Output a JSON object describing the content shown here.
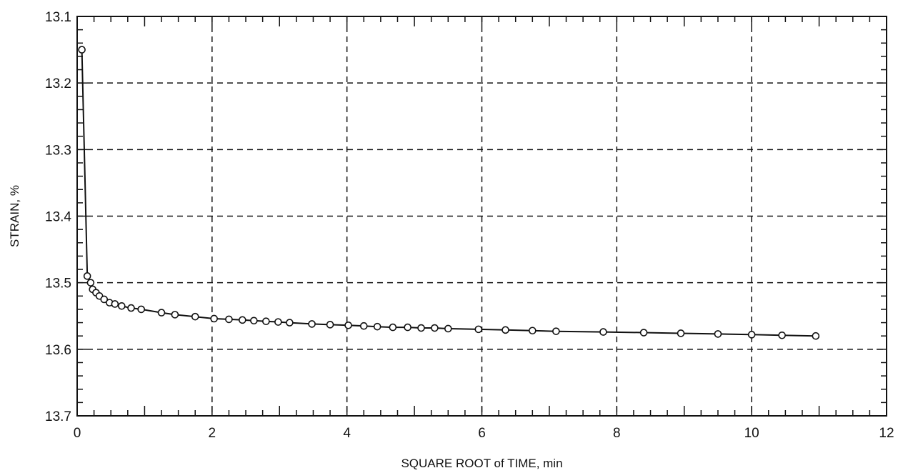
{
  "chart_data": {
    "type": "scatter",
    "xlabel": "SQUARE ROOT of TIME, min",
    "ylabel": "STRAIN, %",
    "xlim": [
      0,
      12
    ],
    "ylim": [
      13.1,
      13.7
    ],
    "y_axis_inverted": true,
    "grid": "dashed",
    "x_ticks": [
      "0",
      "2",
      "4",
      "6",
      "8",
      "10",
      "12"
    ],
    "y_ticks": [
      "13.1",
      "13.2",
      "13.3",
      "13.4",
      "13.5",
      "13.6",
      "13.7"
    ],
    "series": [
      {
        "marker": "circle",
        "line": "fitted curve",
        "points": [
          [
            0.07,
            13.15
          ],
          [
            0.15,
            13.49
          ],
          [
            0.2,
            13.5
          ],
          [
            0.23,
            13.51
          ],
          [
            0.28,
            13.515
          ],
          [
            0.33,
            13.52
          ],
          [
            0.4,
            13.525
          ],
          [
            0.48,
            13.53
          ],
          [
            0.56,
            13.532
          ],
          [
            0.66,
            13.535
          ],
          [
            0.8,
            13.538
          ],
          [
            0.95,
            13.54
          ],
          [
            1.25,
            13.545
          ],
          [
            1.45,
            13.548
          ],
          [
            1.75,
            13.551
          ],
          [
            2.03,
            13.554
          ],
          [
            2.25,
            13.555
          ],
          [
            2.45,
            13.556
          ],
          [
            2.62,
            13.557
          ],
          [
            2.8,
            13.558
          ],
          [
            2.98,
            13.559
          ],
          [
            3.15,
            13.56
          ],
          [
            3.48,
            13.562
          ],
          [
            3.75,
            13.563
          ],
          [
            4.02,
            13.564
          ],
          [
            4.25,
            13.565
          ],
          [
            4.45,
            13.566
          ],
          [
            4.68,
            13.567
          ],
          [
            4.9,
            13.567
          ],
          [
            5.1,
            13.568
          ],
          [
            5.3,
            13.568
          ],
          [
            5.5,
            13.569
          ],
          [
            5.95,
            13.57
          ],
          [
            6.35,
            13.571
          ],
          [
            6.75,
            13.572
          ],
          [
            7.1,
            13.573
          ],
          [
            7.8,
            13.574
          ],
          [
            8.4,
            13.575
          ],
          [
            8.95,
            13.576
          ],
          [
            9.5,
            13.577
          ],
          [
            10.0,
            13.578
          ],
          [
            10.45,
            13.579
          ],
          [
            10.95,
            13.58
          ]
        ]
      }
    ]
  }
}
